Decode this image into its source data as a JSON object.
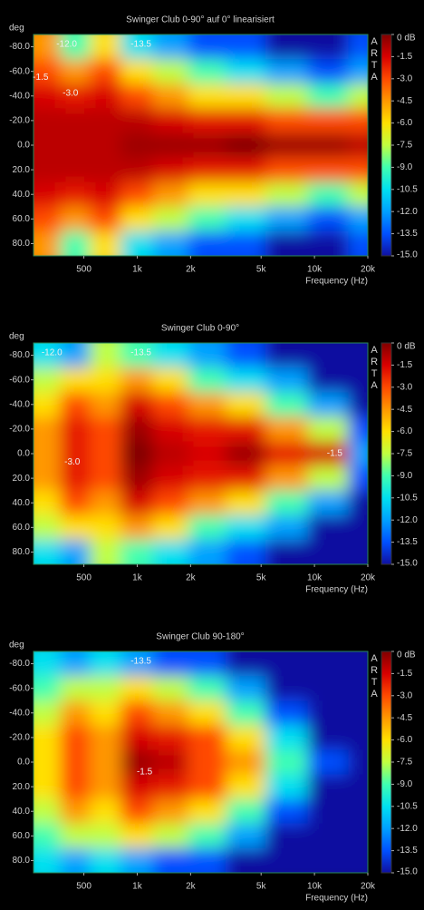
{
  "chart_data": [
    {
      "type": "heatmap",
      "title": "Swinger Club 0-90° auf 0° linearisiert",
      "y_axis_label": "deg",
      "x_axis_label": "Frequency (Hz)",
      "watermark": "ARTA",
      "xscale": "log",
      "xlim": [
        260,
        20000
      ],
      "ylim": [
        -90,
        90
      ],
      "xticks": [
        500,
        {
          "value": 1000,
          "label": "1k"
        },
        {
          "value": 2000,
          "label": "2k"
        },
        {
          "value": 5000,
          "label": "5k"
        },
        {
          "value": 10000,
          "label": "10k"
        },
        {
          "value": 20000,
          "label": "20k"
        }
      ],
      "yticks": [
        {
          "value": -80,
          "label": "-80.0"
        },
        {
          "value": -60,
          "label": "-60.0"
        },
        {
          "value": -40,
          "label": "-40.0"
        },
        {
          "value": -20,
          "label": "-20.0"
        },
        {
          "value": 0,
          "label": "0.0"
        },
        {
          "value": 20,
          "label": "20.0"
        },
        {
          "value": 40,
          "label": "40.0"
        },
        {
          "value": 60,
          "label": "60.0"
        },
        {
          "value": 80,
          "label": "80.0"
        }
      ],
      "x": [
        300,
        450,
        650,
        1000,
        1500,
        2500,
        4000,
        7000,
        12000,
        20000
      ],
      "y": [
        -80,
        -60,
        -40,
        -20,
        0,
        20,
        40,
        60,
        80
      ],
      "values": [
        [
          -4.5,
          -9,
          -6,
          -10.5,
          -12,
          -13.5,
          -13.5,
          -15,
          -15,
          -13.5
        ],
        [
          -3,
          -4.5,
          -3,
          -6,
          -7.5,
          -9,
          -10.5,
          -12,
          -13.5,
          -12
        ],
        [
          -1.5,
          -2,
          -1.5,
          -3,
          -4.5,
          -6,
          -6,
          -7.5,
          -9,
          -7.5
        ],
        [
          -1,
          -1,
          -1,
          -1,
          -1.5,
          -2,
          -2,
          -3,
          -3,
          -3
        ],
        [
          -1,
          -1,
          -1,
          -0.5,
          -0.5,
          -0.5,
          0,
          -0.5,
          -0.5,
          -1
        ],
        [
          -1,
          -1,
          -1,
          -1,
          -1.5,
          -2,
          -2,
          -3,
          -3,
          -3
        ],
        [
          -1.5,
          -2,
          -1.5,
          -3,
          -4.5,
          -6,
          -6,
          -7.5,
          -9,
          -7.5
        ],
        [
          -3,
          -4.5,
          -3,
          -6,
          -7.5,
          -9,
          -10.5,
          -12,
          -13.5,
          -12
        ],
        [
          -4.5,
          -9,
          -6,
          -10.5,
          -12,
          -13.5,
          -13.5,
          -15,
          -15,
          -13.5
        ]
      ],
      "colorbar": {
        "clim": [
          -15,
          0
        ],
        "ticks": [
          {
            "value": 0,
            "label": "0 dB"
          },
          -1.5,
          {
            "value": -3,
            "label": "-3.0"
          },
          -4.5,
          {
            "value": -6,
            "label": "-6.0"
          },
          -7.5,
          {
            "value": -9,
            "label": "-9.0"
          },
          -10.5,
          {
            "value": -12,
            "label": "-12.0"
          },
          -13.5,
          {
            "value": -15,
            "label": "-15.0"
          }
        ],
        "colors": [
          "#800000",
          "#d80000",
          "#ff4a00",
          "#ff9800",
          "#ffe000",
          "#c0ff40",
          "#40ffb0",
          "#00e0f0",
          "#00a0ff",
          "#0050ff",
          "#1010a0"
        ]
      },
      "annotations": [
        {
          "text": "-12.0",
          "x": 400,
          "y": -82
        },
        {
          "text": "-13.5",
          "x": 1050,
          "y": -82
        },
        {
          "text": "-1.5",
          "x": 285,
          "y": -55
        },
        {
          "text": "-3.0",
          "x": 420,
          "y": -42
        }
      ]
    },
    {
      "type": "heatmap",
      "title": "Swinger Club 0-90°",
      "y_axis_label": "deg",
      "x_axis_label": "Frequency (Hz)",
      "watermark": "ARTA",
      "xscale": "log",
      "xlim": [
        260,
        20000
      ],
      "ylim": [
        -90,
        90
      ],
      "xticks": [
        500,
        {
          "value": 1000,
          "label": "1k"
        },
        {
          "value": 2000,
          "label": "2k"
        },
        {
          "value": 5000,
          "label": "5k"
        },
        {
          "value": 10000,
          "label": "10k"
        },
        {
          "value": 20000,
          "label": "20k"
        }
      ],
      "yticks": [
        {
          "value": -80,
          "label": "-80.0"
        },
        {
          "value": -60,
          "label": "-60.0"
        },
        {
          "value": -40,
          "label": "-40.0"
        },
        {
          "value": -20,
          "label": "-20.0"
        },
        {
          "value": 0,
          "label": "0.0"
        },
        {
          "value": 20,
          "label": "20.0"
        },
        {
          "value": 40,
          "label": "40.0"
        },
        {
          "value": 60,
          "label": "60.0"
        },
        {
          "value": 80,
          "label": "80.0"
        }
      ],
      "x": [
        300,
        450,
        650,
        1000,
        1500,
        2500,
        4000,
        7000,
        12000,
        20000
      ],
      "y": [
        -80,
        -60,
        -40,
        -20,
        0,
        20,
        40,
        60,
        80
      ],
      "values": [
        [
          -10.5,
          -12,
          -7.5,
          -9,
          -10.5,
          -12,
          -13.5,
          -15,
          -15,
          -15
        ],
        [
          -7.5,
          -6,
          -6,
          -4.5,
          -6,
          -9,
          -10.5,
          -12,
          -15,
          -15
        ],
        [
          -6,
          -3,
          -4.5,
          -1.5,
          -3,
          -4.5,
          -6,
          -9,
          -12,
          -15
        ],
        [
          -4.5,
          -2,
          -3,
          -0.5,
          -1.5,
          -2,
          -2,
          -4.5,
          -7.5,
          -13.5
        ],
        [
          -4.5,
          -2,
          -3,
          0,
          -1,
          -1.5,
          -0.5,
          -2,
          -1.5,
          -12
        ],
        [
          -4.5,
          -2,
          -3,
          -0.5,
          -1.5,
          -2,
          -2,
          -4.5,
          -7.5,
          -13.5
        ],
        [
          -6,
          -3,
          -4.5,
          -1.5,
          -3,
          -4.5,
          -6,
          -9,
          -12,
          -15
        ],
        [
          -7.5,
          -6,
          -6,
          -4.5,
          -6,
          -9,
          -10.5,
          -12,
          -15,
          -15
        ],
        [
          -10.5,
          -12,
          -7.5,
          -9,
          -10.5,
          -12,
          -13.5,
          -15,
          -15,
          -15
        ]
      ],
      "colorbar": {
        "clim": [
          -15,
          0
        ],
        "ticks": [
          {
            "value": 0,
            "label": "0 dB"
          },
          -1.5,
          {
            "value": -3,
            "label": "-3.0"
          },
          -4.5,
          {
            "value": -6,
            "label": "-6.0"
          },
          -7.5,
          {
            "value": -9,
            "label": "-9.0"
          },
          -10.5,
          {
            "value": -12,
            "label": "-12.0"
          },
          -13.5,
          {
            "value": -15,
            "label": "-15.0"
          }
        ],
        "colors": [
          "#800000",
          "#d80000",
          "#ff4a00",
          "#ff9800",
          "#ffe000",
          "#c0ff40",
          "#40ffb0",
          "#00e0f0",
          "#00a0ff",
          "#0050ff",
          "#1010a0"
        ]
      },
      "annotations": [
        {
          "text": "-12.0",
          "x": 330,
          "y": -82
        },
        {
          "text": "-13.5",
          "x": 1050,
          "y": -82
        },
        {
          "text": "-3.0",
          "x": 430,
          "y": 7
        },
        {
          "text": "-1.5",
          "x": 13000,
          "y": 0
        }
      ]
    },
    {
      "type": "heatmap",
      "title": "Swinger Club 90-180°",
      "y_axis_label": "deg",
      "x_axis_label": "Frequency (Hz)",
      "watermark": "ARTA",
      "xscale": "log",
      "xlim": [
        260,
        20000
      ],
      "ylim": [
        -90,
        90
      ],
      "xticks": [
        500,
        {
          "value": 1000,
          "label": "1k"
        },
        {
          "value": 2000,
          "label": "2k"
        },
        {
          "value": 5000,
          "label": "5k"
        },
        {
          "value": 10000,
          "label": "10k"
        },
        {
          "value": 20000,
          "label": "20k"
        }
      ],
      "yticks": [
        {
          "value": -80,
          "label": "-80.0"
        },
        {
          "value": -60,
          "label": "-60.0"
        },
        {
          "value": -40,
          "label": "-40.0"
        },
        {
          "value": -20,
          "label": "-20.0"
        },
        {
          "value": 0,
          "label": "0.0"
        },
        {
          "value": 20,
          "label": "20.0"
        },
        {
          "value": 40,
          "label": "40.0"
        },
        {
          "value": 60,
          "label": "60.0"
        },
        {
          "value": 80,
          "label": "80.0"
        }
      ],
      "x": [
        300,
        450,
        650,
        1000,
        1500,
        2500,
        4000,
        7000,
        12000,
        20000
      ],
      "y": [
        -80,
        -60,
        -40,
        -20,
        0,
        20,
        40,
        60,
        80
      ],
      "values": [
        [
          -10.5,
          -12,
          -10.5,
          -12,
          -13.5,
          -13.5,
          -15,
          -15,
          -15,
          -15
        ],
        [
          -9,
          -7.5,
          -7.5,
          -6,
          -7.5,
          -9,
          -12,
          -15,
          -15,
          -15
        ],
        [
          -7.5,
          -4.5,
          -6,
          -3,
          -4.5,
          -6,
          -9,
          -13.5,
          -15,
          -15
        ],
        [
          -6,
          -3,
          -4.5,
          -1.5,
          -2,
          -3,
          -6,
          -10.5,
          -15,
          -15
        ],
        [
          -6,
          -3,
          -4.5,
          -0.5,
          -1,
          -3,
          -4.5,
          -9,
          -13.5,
          -15
        ],
        [
          -6,
          -3,
          -4.5,
          -1.5,
          -2,
          -3,
          -6,
          -10.5,
          -15,
          -15
        ],
        [
          -7.5,
          -4.5,
          -6,
          -3,
          -4.5,
          -6,
          -9,
          -13.5,
          -15,
          -15
        ],
        [
          -9,
          -7.5,
          -7.5,
          -6,
          -7.5,
          -9,
          -12,
          -15,
          -15,
          -15
        ],
        [
          -10.5,
          -12,
          -10.5,
          -12,
          -13.5,
          -13.5,
          -15,
          -15,
          -15,
          -15
        ]
      ],
      "colorbar": {
        "clim": [
          -15,
          0
        ],
        "ticks": [
          {
            "value": 0,
            "label": "0 dB"
          },
          -1.5,
          {
            "value": -3,
            "label": "-3.0"
          },
          -4.5,
          {
            "value": -6,
            "label": "-6.0"
          },
          -7.5,
          {
            "value": -9,
            "label": "-9.0"
          },
          -10.5,
          {
            "value": -12,
            "label": "-12.0"
          },
          -13.5,
          {
            "value": -15,
            "label": "-15.0"
          }
        ],
        "colors": [
          "#800000",
          "#d80000",
          "#ff4a00",
          "#ff9800",
          "#ffe000",
          "#c0ff40",
          "#40ffb0",
          "#00e0f0",
          "#00a0ff",
          "#0050ff",
          "#1010a0"
        ]
      },
      "annotations": [
        {
          "text": "-13.5",
          "x": 1050,
          "y": -82
        },
        {
          "text": "-1.5",
          "x": 1100,
          "y": 8
        }
      ]
    }
  ]
}
